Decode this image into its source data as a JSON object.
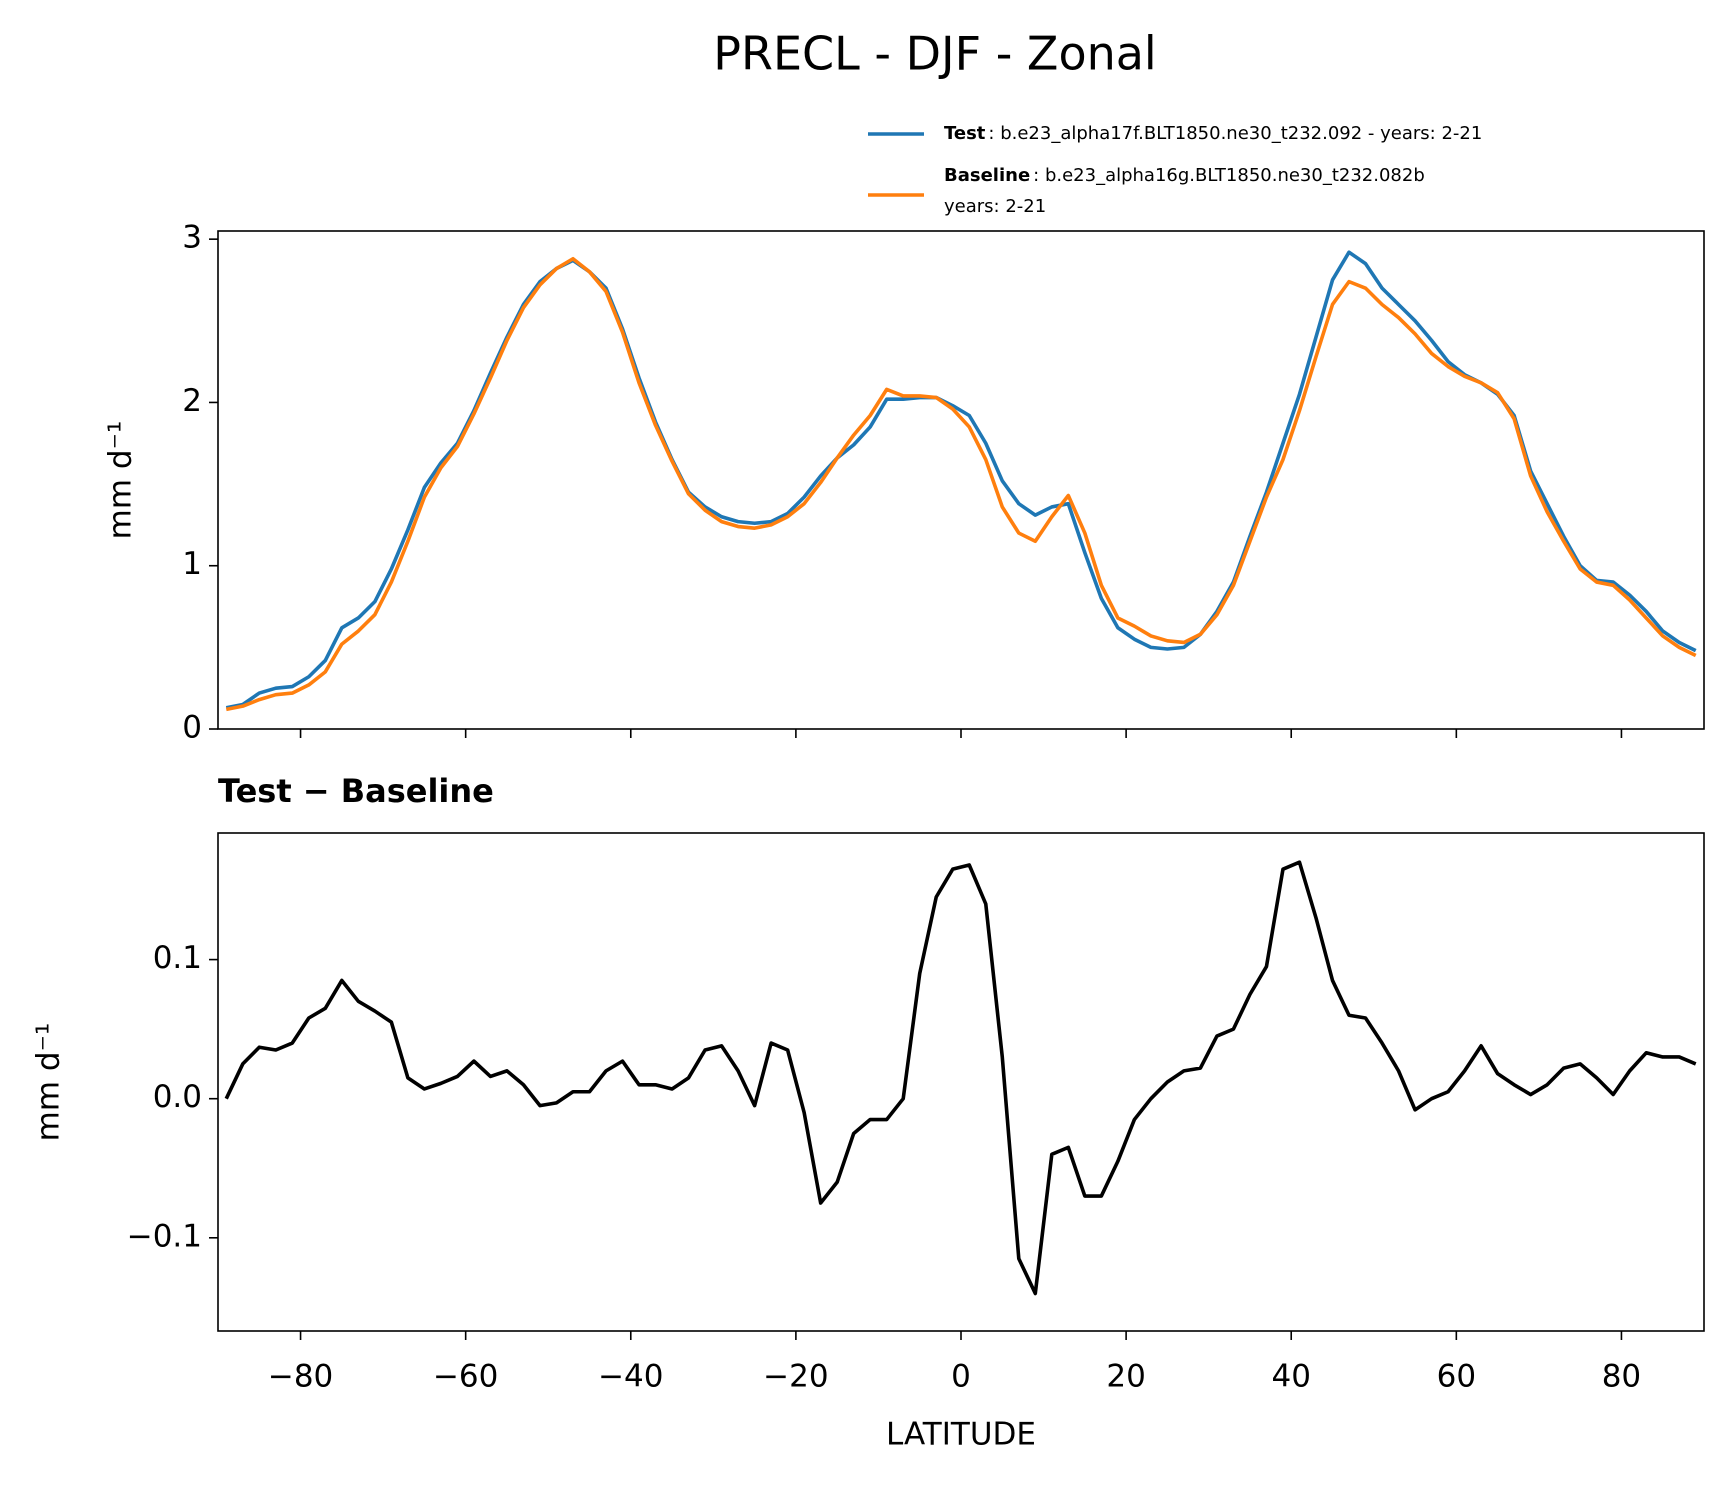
{
  "title": "PRECL - DJF - Zonal",
  "chart_data": [
    {
      "type": "line",
      "ylabel": "mm d⁻¹",
      "legend": "above right",
      "x": [
        -89,
        -87,
        -85,
        -83,
        -81,
        -79,
        -77,
        -75,
        -73,
        -71,
        -69,
        -67,
        -65,
        -63,
        -61,
        -59,
        -57,
        -55,
        -53,
        -51,
        -49,
        -47,
        -45,
        -43,
        -41,
        -39,
        -37,
        -35,
        -33,
        -31,
        -29,
        -27,
        -25,
        -23,
        -21,
        -19,
        -17,
        -15,
        -13,
        -11,
        -9,
        -7,
        -5,
        -3,
        -1,
        1,
        3,
        5,
        7,
        9,
        11,
        13,
        15,
        17,
        19,
        21,
        23,
        25,
        27,
        29,
        31,
        33,
        35,
        37,
        39,
        41,
        43,
        45,
        47,
        49,
        51,
        53,
        55,
        57,
        59,
        61,
        63,
        65,
        67,
        69,
        71,
        73,
        75,
        77,
        79,
        81,
        83,
        85,
        87,
        89
      ],
      "series": [
        {
          "name": "Test",
          "label": [
            ": b.e23_alpha17f.BLT1850.ne30_t232.092 - years: 2-21"
          ],
          "color": "#1f77b4",
          "values": [
            0.13,
            0.15,
            0.22,
            0.25,
            0.26,
            0.32,
            0.42,
            0.62,
            0.68,
            0.78,
            0.98,
            1.22,
            1.48,
            1.63,
            1.75,
            1.95,
            2.18,
            2.4,
            2.6,
            2.74,
            2.82,
            2.87,
            2.8,
            2.7,
            2.45,
            2.15,
            1.88,
            1.65,
            1.45,
            1.36,
            1.3,
            1.27,
            1.26,
            1.27,
            1.32,
            1.42,
            1.55,
            1.66,
            1.74,
            1.85,
            2.02,
            2.02,
            2.03,
            2.03,
            1.98,
            1.92,
            1.75,
            1.52,
            1.38,
            1.31,
            1.36,
            1.38,
            1.08,
            0.8,
            0.62,
            0.55,
            0.5,
            0.49,
            0.5,
            0.58,
            0.72,
            0.9,
            1.18,
            1.45,
            1.75,
            2.05,
            2.4,
            2.75,
            2.92,
            2.85,
            2.7,
            2.6,
            2.5,
            2.38,
            2.25,
            2.17,
            2.12,
            2.05,
            1.92,
            1.58,
            1.38,
            1.18,
            1.0,
            0.91,
            0.9,
            0.82,
            0.72,
            0.6,
            0.53,
            0.48
          ]
        },
        {
          "name": "Baseline",
          "label": [
            ": b.e23_alpha16g.BLT1850.ne30_t232.082b",
            "years: 2-21"
          ],
          "color": "#ff7f0e",
          "values": [
            0.12,
            0.14,
            0.18,
            0.21,
            0.22,
            0.27,
            0.35,
            0.52,
            0.6,
            0.7,
            0.9,
            1.15,
            1.42,
            1.6,
            1.73,
            1.93,
            2.15,
            2.38,
            2.58,
            2.72,
            2.82,
            2.88,
            2.8,
            2.68,
            2.43,
            2.12,
            1.86,
            1.64,
            1.44,
            1.34,
            1.27,
            1.24,
            1.23,
            1.25,
            1.3,
            1.38,
            1.51,
            1.66,
            1.8,
            1.92,
            2.08,
            2.04,
            2.04,
            2.03,
            1.96,
            1.85,
            1.65,
            1.36,
            1.2,
            1.15,
            1.3,
            1.43,
            1.2,
            0.88,
            0.68,
            0.63,
            0.57,
            0.54,
            0.53,
            0.58,
            0.7,
            0.88,
            1.15,
            1.42,
            1.65,
            1.95,
            2.28,
            2.6,
            2.74,
            2.7,
            2.6,
            2.52,
            2.42,
            2.3,
            2.22,
            2.16,
            2.12,
            2.06,
            1.9,
            1.55,
            1.33,
            1.15,
            0.98,
            0.9,
            0.88,
            0.79,
            0.68,
            0.57,
            0.5,
            0.45
          ]
        }
      ],
      "xlim": [
        -90,
        90
      ],
      "xticks": [
        -80,
        -60,
        -40,
        -20,
        0,
        20,
        40,
        60,
        80
      ],
      "ylim": [
        0,
        3.05
      ],
      "yticks": [
        0,
        1,
        2,
        3
      ]
    },
    {
      "type": "line",
      "title": "Test − Baseline",
      "xlabel": "LATITUDE",
      "ylabel": "mm d⁻¹",
      "x": [
        -89,
        -87,
        -85,
        -83,
        -81,
        -79,
        -77,
        -75,
        -73,
        -71,
        -69,
        -67,
        -65,
        -63,
        -61,
        -59,
        -57,
        -55,
        -53,
        -51,
        -49,
        -47,
        -45,
        -43,
        -41,
        -39,
        -37,
        -35,
        -33,
        -31,
        -29,
        -27,
        -25,
        -23,
        -21,
        -19,
        -17,
        -15,
        -13,
        -11,
        -9,
        -7,
        -5,
        -3,
        -1,
        1,
        3,
        5,
        7,
        9,
        11,
        13,
        15,
        17,
        19,
        21,
        23,
        25,
        27,
        29,
        31,
        33,
        35,
        37,
        39,
        41,
        43,
        45,
        47,
        49,
        51,
        53,
        55,
        57,
        59,
        61,
        63,
        65,
        67,
        69,
        71,
        73,
        75,
        77,
        79,
        81,
        83,
        85,
        87,
        89
      ],
      "series": [
        {
          "color": "#000000",
          "values": [
            0.0,
            0.025,
            0.037,
            0.035,
            0.04,
            0.058,
            0.065,
            0.085,
            0.07,
            0.063,
            0.055,
            0.015,
            0.007,
            0.011,
            0.016,
            0.027,
            0.016,
            0.02,
            0.01,
            -0.005,
            -0.003,
            0.005,
            0.005,
            0.02,
            0.027,
            0.01,
            0.01,
            0.007,
            0.015,
            0.035,
            0.038,
            0.02,
            -0.005,
            0.04,
            0.035,
            -0.01,
            -0.075,
            -0.06,
            -0.025,
            -0.015,
            -0.015,
            0.0,
            0.09,
            0.145,
            0.165,
            0.168,
            0.14,
            0.03,
            -0.115,
            -0.14,
            -0.04,
            -0.035,
            -0.07,
            -0.07,
            -0.045,
            -0.015,
            0.0,
            0.012,
            0.02,
            0.022,
            0.045,
            0.05,
            0.075,
            0.095,
            0.165,
            0.17,
            0.13,
            0.085,
            0.06,
            0.058,
            0.04,
            0.02,
            -0.008,
            0.0,
            0.005,
            0.02,
            0.038,
            0.018,
            0.01,
            0.003,
            0.01,
            0.022,
            0.025,
            0.015,
            0.003,
            0.02,
            0.033,
            0.03,
            0.03,
            0.025
          ]
        }
      ],
      "xlim": [
        -90,
        90
      ],
      "xticks": [
        {
          "value": -80,
          "label": "−80"
        },
        {
          "value": -60,
          "label": "−60"
        },
        {
          "value": -40,
          "label": "−40"
        },
        {
          "value": -20,
          "label": "−20"
        },
        0,
        20,
        40,
        60,
        80
      ],
      "ylim": [
        -0.167,
        0.191
      ],
      "yticks": [
        {
          "value": -0.1,
          "label": "−0.1"
        },
        {
          "value": 0,
          "label": "0.0"
        },
        {
          "value": 0.1,
          "label": "0.1"
        }
      ]
    }
  ]
}
